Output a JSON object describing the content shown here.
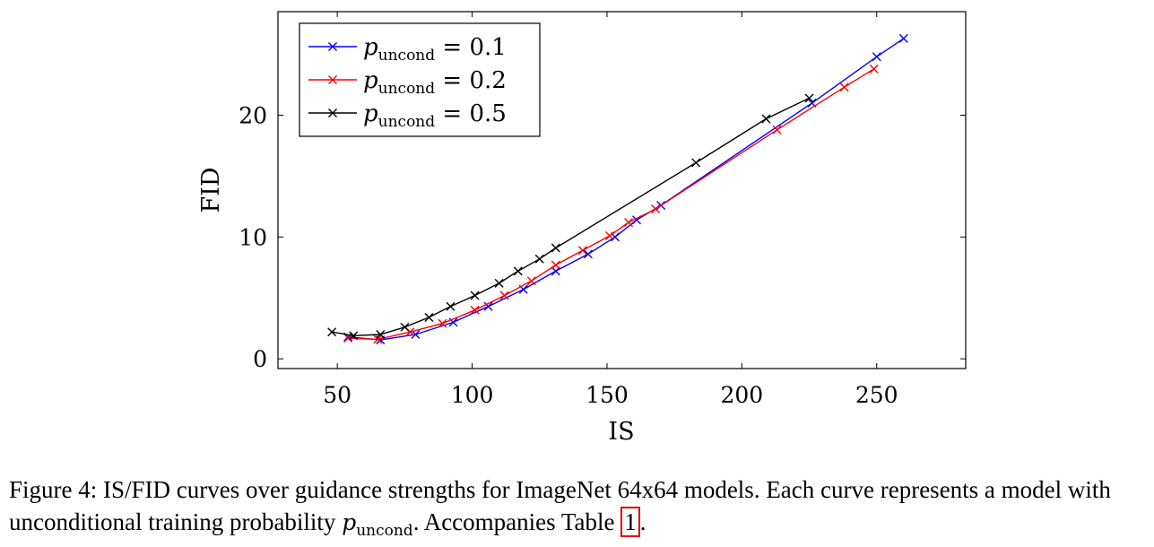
{
  "chart_data": {
    "type": "line",
    "title": "",
    "xlabel": "IS",
    "ylabel": "FID",
    "xlim": [
      28,
      283
    ],
    "ylim": [
      -0.8,
      28.5
    ],
    "xticks": [
      50,
      100,
      150,
      200,
      250
    ],
    "yticks": [
      0,
      10,
      20
    ],
    "legend_position": "top-left",
    "series": [
      {
        "name": "p_uncond = 0.1",
        "label_var": "p",
        "label_sub": "uncond",
        "label_rest": " = 0.1",
        "color": "#0000ff",
        "marker": "x",
        "points": [
          [
            54,
            1.8
          ],
          [
            66,
            1.55
          ],
          [
            79,
            2.0
          ],
          [
            93,
            3.0
          ],
          [
            106,
            4.3
          ],
          [
            119,
            5.7
          ],
          [
            131,
            7.2
          ],
          [
            143,
            8.6
          ],
          [
            153,
            10.0
          ],
          [
            161,
            11.4
          ],
          [
            170,
            12.6
          ],
          [
            226,
            21.0
          ],
          [
            250,
            24.8
          ],
          [
            260,
            26.3
          ]
        ]
      },
      {
        "name": "p_uncond = 0.2",
        "label_var": "p",
        "label_sub": "uncond",
        "label_rest": " = 0.2",
        "color": "#ff0000",
        "marker": "x",
        "points": [
          [
            54,
            1.7
          ],
          [
            65,
            1.6
          ],
          [
            77,
            2.2
          ],
          [
            89,
            2.9
          ],
          [
            101,
            4.0
          ],
          [
            112,
            5.2
          ],
          [
            122,
            6.4
          ],
          [
            131,
            7.7
          ],
          [
            141,
            8.9
          ],
          [
            151,
            10.1
          ],
          [
            158,
            11.2
          ],
          [
            168,
            12.3
          ],
          [
            213,
            18.8
          ],
          [
            238,
            22.3
          ],
          [
            249,
            23.8
          ]
        ]
      },
      {
        "name": "p_uncond = 0.5",
        "label_var": "p",
        "label_sub": "uncond",
        "label_rest": " = 0.5",
        "color": "#000000",
        "marker": "x",
        "points": [
          [
            48,
            2.2
          ],
          [
            56,
            1.9
          ],
          [
            66,
            2.0
          ],
          [
            75,
            2.6
          ],
          [
            84,
            3.4
          ],
          [
            92,
            4.3
          ],
          [
            101,
            5.2
          ],
          [
            110,
            6.2
          ],
          [
            117,
            7.2
          ],
          [
            125,
            8.2
          ],
          [
            131,
            9.1
          ],
          [
            183,
            16.1
          ],
          [
            209,
            19.7
          ],
          [
            225,
            21.4
          ]
        ]
      }
    ]
  },
  "caption": {
    "part1": "Figure 4: IS/FID curves over guidance strengths for ImageNet 64x64 models. Each curve represents a model with unconditional training probability ",
    "math_var": "p",
    "math_sub": "uncond",
    "part2": ". Accompanies Table ",
    "table_ref": "1",
    "part3": "."
  }
}
